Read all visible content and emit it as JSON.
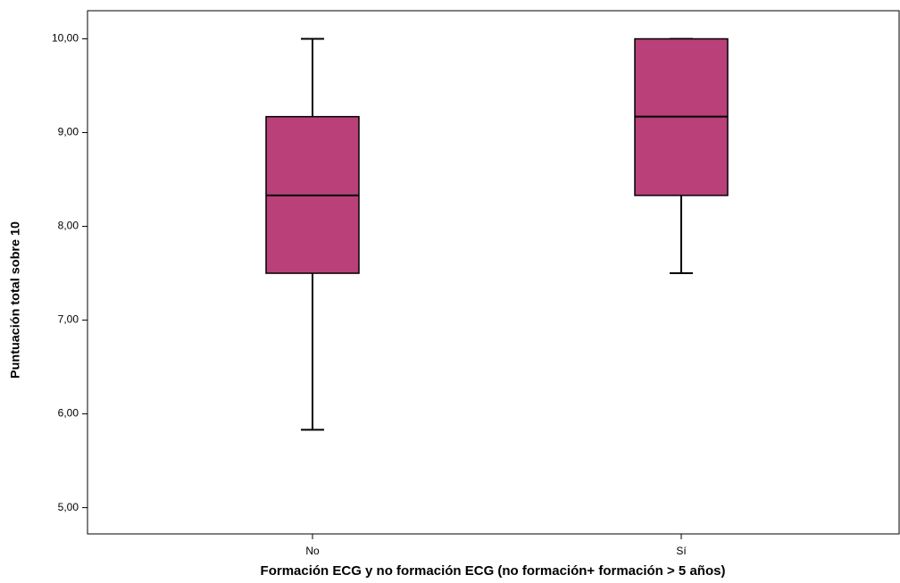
{
  "chart_data": {
    "type": "box",
    "x_label": "Formación ECG y no formación ECG (no formación+ formación > 5 años)",
    "y_label": "Puntuación total sobre 10",
    "categories": [
      "No",
      "Sí"
    ],
    "color": "#b94079",
    "boxes": [
      {
        "min": 5.83,
        "q1": 7.5,
        "median": 8.33,
        "q3": 9.17,
        "max": 10
      },
      {
        "min": 7.5,
        "q1": 8.33,
        "median": 9.17,
        "q3": 10,
        "max": 10
      }
    ],
    "ylim": [
      4.72,
      10.3
    ],
    "yticks": [
      {
        "value": 5,
        "label": "5,00"
      },
      {
        "value": 6,
        "label": "6,00"
      },
      {
        "value": 7,
        "label": "7,00"
      },
      {
        "value": 8,
        "label": "8,00"
      },
      {
        "value": 9,
        "label": "9,00"
      },
      {
        "value": 10,
        "label": "10,00"
      }
    ],
    "grid": false
  }
}
